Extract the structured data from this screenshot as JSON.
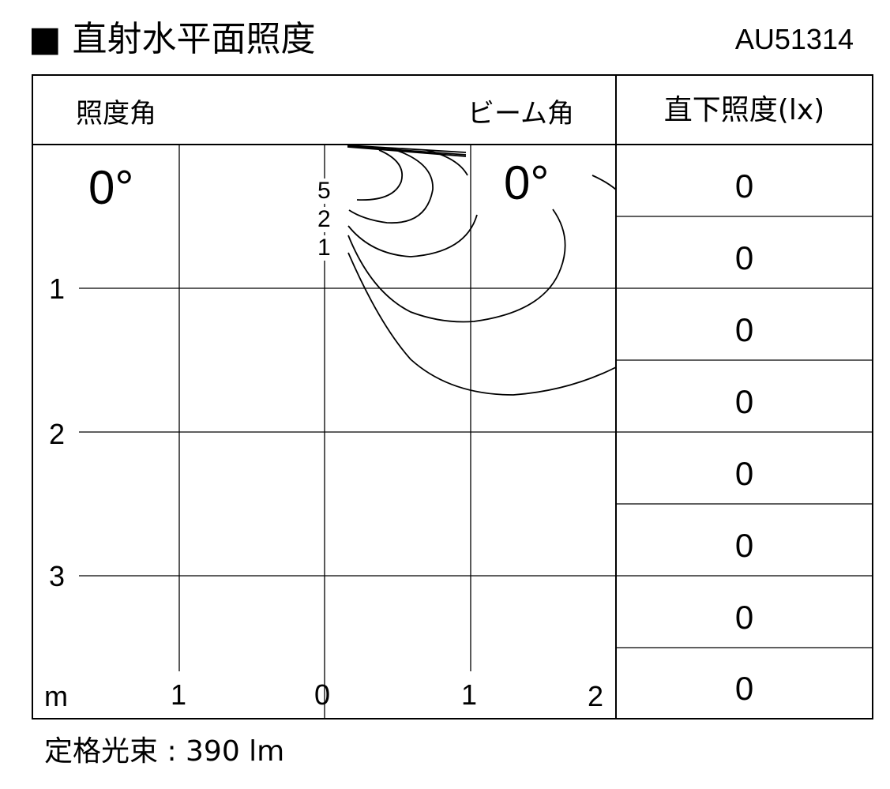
{
  "title": "■ 直射水平面照度",
  "model": "AU51314",
  "header": {
    "illuminance_angle": "照度角",
    "beam_angle": "ビーム角",
    "direct_below": "直下照度(lx)"
  },
  "diagram": {
    "illuminance_angle_value": "0°",
    "beam_angle_value": "0°",
    "unit": "m",
    "x_ticks": [
      "1",
      "0",
      "1",
      "2"
    ],
    "y_ticks": [
      "1",
      "2",
      "3"
    ],
    "contour_labels": [
      "5",
      "2",
      "1"
    ]
  },
  "direct_illuminance": [
    "0",
    "0",
    "0",
    "0",
    "0",
    "0",
    "0",
    "0"
  ],
  "footer": "定格光束 : 390 lm"
}
